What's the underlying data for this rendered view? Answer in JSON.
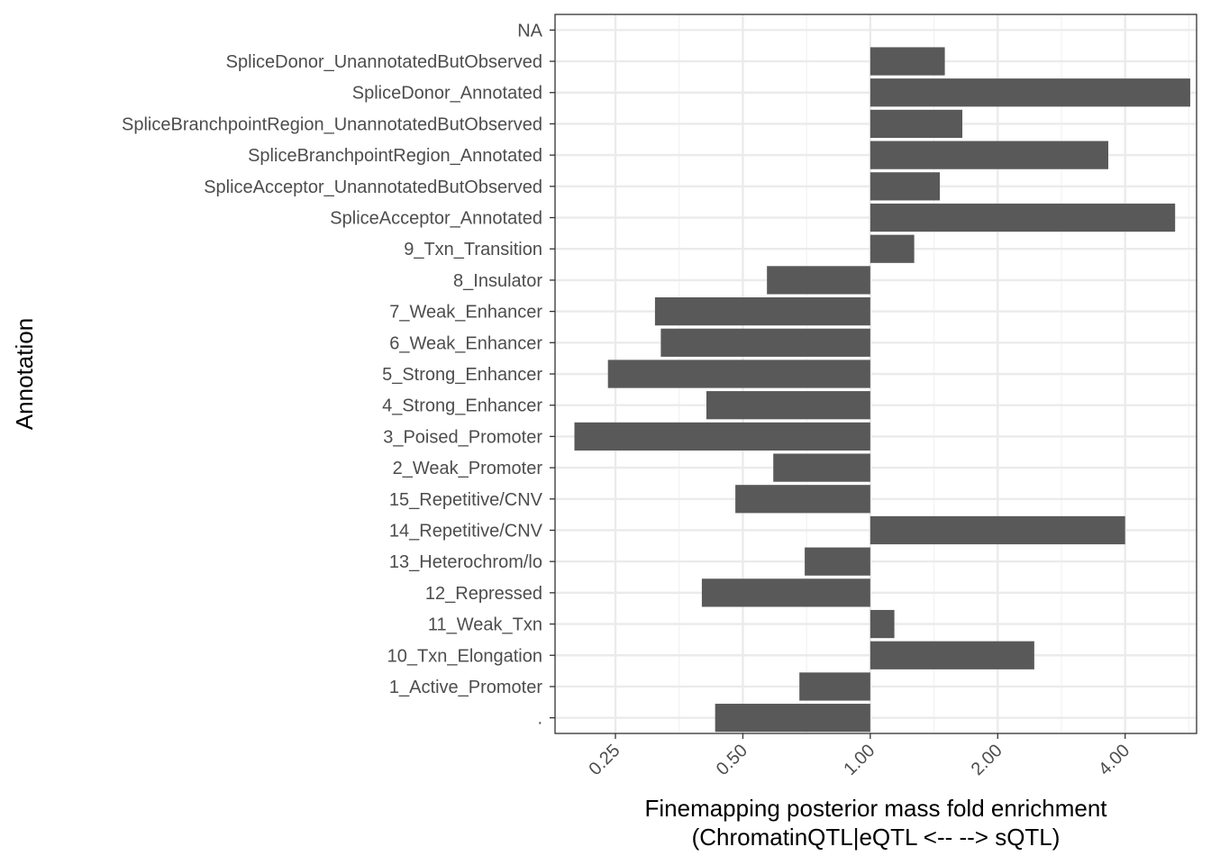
{
  "chart_data": {
    "type": "bar",
    "orientation": "horizontal",
    "xlabel_line1": "Finemapping posterior mass fold enrichment",
    "xlabel_line2": "(ChromatinQTL|eQTL <-- --> sQTL)",
    "ylabel": "Annotation",
    "x_scale": "log2",
    "xlim": [
      0.18,
      5.9
    ],
    "x_ticks": [
      0.25,
      0.5,
      1,
      2,
      4
    ],
    "x_tick_labels": [
      "0.25",
      "0.50",
      "1.00",
      "2.00",
      "4.00"
    ],
    "bar_baseline": 1,
    "grid": true,
    "bar_color": "#595959",
    "categories": [
      "NA",
      "SpliceDonor_UnannotatedButObserved",
      "SpliceDonor_Annotated",
      "SpliceBranchpointRegion_UnannotatedButObserved",
      "SpliceBranchpointRegion_Annotated",
      "SpliceAcceptor_UnannotatedButObserved",
      "SpliceAcceptor_Annotated",
      "9_Txn_Transition",
      "8_Insulator",
      "7_Weak_Enhancer",
      "6_Weak_Enhancer",
      "5_Strong_Enhancer",
      "4_Strong_Enhancer",
      "3_Poised_Promoter",
      "2_Weak_Promoter",
      "15_Repetitive/CNV",
      "14_Repetitive/CNV",
      "13_Heterochrom/lo",
      "12_Repressed",
      "11_Weak_Txn",
      "10_Txn_Elongation",
      "1_Active_Promoter",
      "."
    ],
    "values": [
      null,
      1.5,
      5.7,
      1.65,
      3.65,
      1.46,
      5.25,
      1.27,
      0.57,
      0.31,
      0.32,
      0.24,
      0.41,
      0.2,
      0.59,
      0.48,
      4.0,
      0.7,
      0.4,
      1.14,
      2.44,
      0.68,
      0.43
    ]
  }
}
